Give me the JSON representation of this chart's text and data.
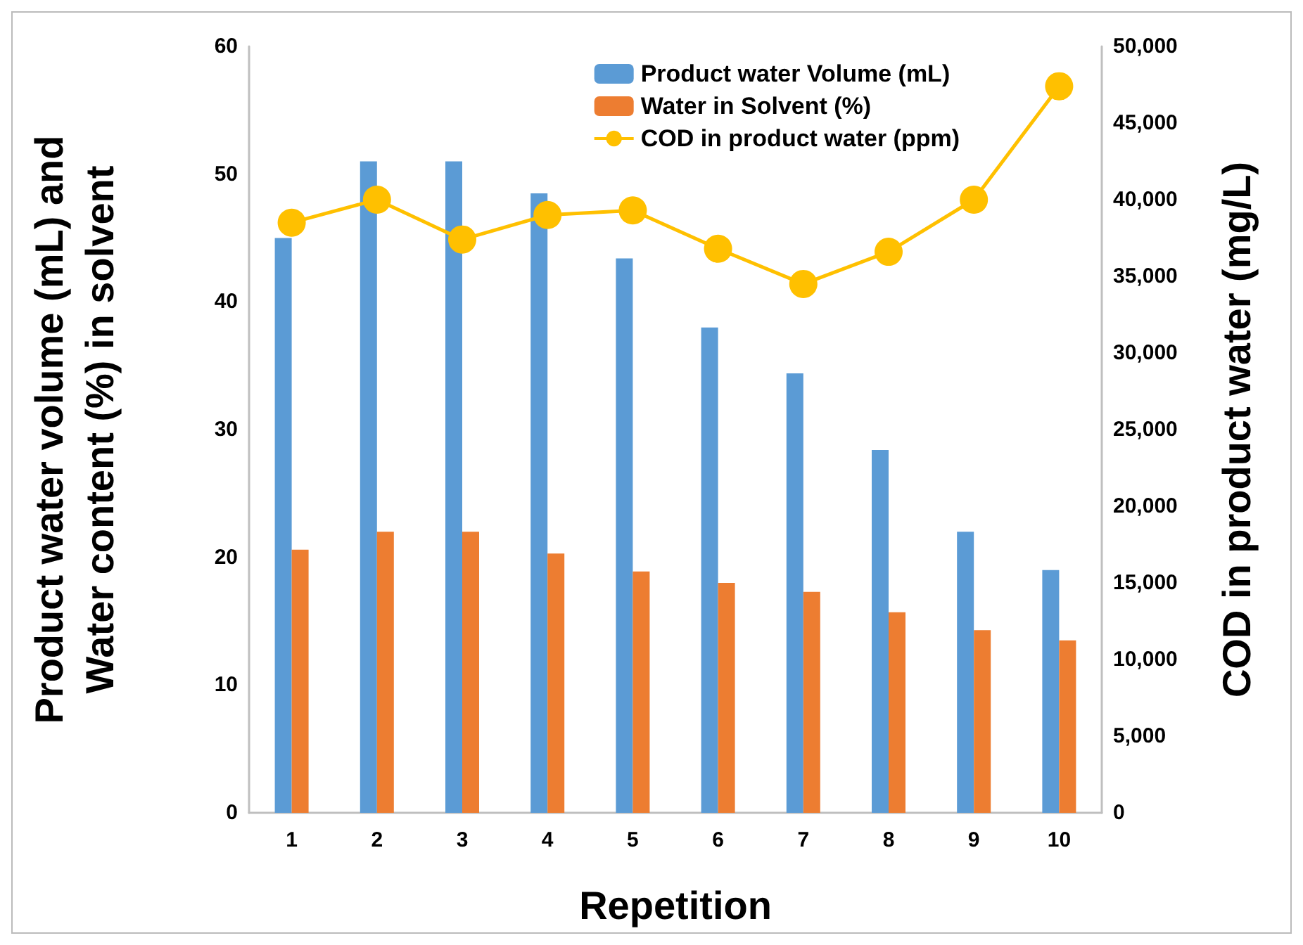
{
  "chart_data": {
    "type": "bar",
    "xlabel": "Repetition",
    "ylabel": "Product water volume (mL) and\nWater content (%) in solvent",
    "y2label": "COD in product water (mg/L)",
    "categories": [
      "1",
      "2",
      "3",
      "4",
      "5",
      "6",
      "7",
      "8",
      "9",
      "10"
    ],
    "series": [
      {
        "name": "Product water Volume (mL)",
        "color": "#5b9bd5",
        "values": [
          45,
          51,
          51,
          48.5,
          43.4,
          38,
          34.4,
          28.4,
          22,
          19
        ]
      },
      {
        "name": "Water in Solvent (%)",
        "color": "#ed7d31",
        "values": [
          20.6,
          22,
          22,
          20.3,
          18.9,
          18,
          17.3,
          15.7,
          14.3,
          13.5
        ]
      },
      {
        "name": "COD in product water (ppm)",
        "type": "line",
        "axis": "y2",
        "color": "#ffc000",
        "marker": "circle",
        "values": [
          38500,
          40000,
          37400,
          39000,
          39300,
          36800,
          34500,
          36600,
          40000,
          47400
        ]
      }
    ],
    "ylim": [
      0,
      60
    ],
    "yticks": [
      0,
      10,
      20,
      30,
      40,
      50,
      60
    ],
    "y2lim": [
      0,
      50000
    ],
    "y2ticks": [
      {
        "value": 0,
        "label": "0"
      },
      {
        "value": 5000,
        "label": "5,000"
      },
      {
        "value": 10000,
        "label": "10,000"
      },
      {
        "value": 15000,
        "label": "15,000"
      },
      {
        "value": 20000,
        "label": "20,000"
      },
      {
        "value": 25000,
        "label": "25,000"
      },
      {
        "value": 30000,
        "label": "30,000"
      },
      {
        "value": 35000,
        "label": "35,000"
      },
      {
        "value": 40000,
        "label": "40,000"
      },
      {
        "value": 45000,
        "label": "45,000"
      },
      {
        "value": 50000,
        "label": "50,000"
      }
    ],
    "grid": false,
    "legend": "top right"
  }
}
